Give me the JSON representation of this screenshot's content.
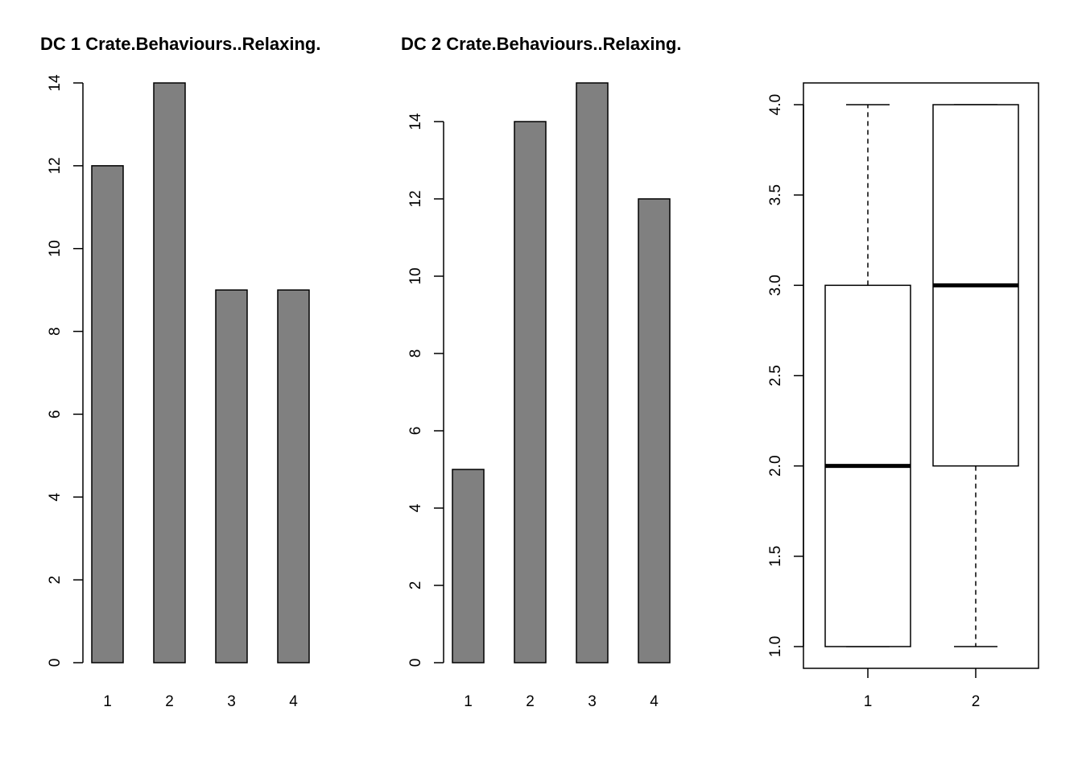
{
  "chart_data": [
    {
      "type": "bar",
      "title": "DC 1 Crate.Behaviours..Relaxing.",
      "categories": [
        "1",
        "2",
        "3",
        "4"
      ],
      "values": [
        12,
        14,
        9,
        9
      ],
      "ylim": [
        0,
        14
      ],
      "yticks": [
        0,
        2,
        4,
        6,
        8,
        10,
        12,
        14
      ],
      "bar_color": "#808080"
    },
    {
      "type": "bar",
      "title": "DC 2 Crate.Behaviours..Relaxing.",
      "categories": [
        "1",
        "2",
        "3",
        "4"
      ],
      "values": [
        5,
        14,
        15,
        12
      ],
      "ylim": [
        0,
        15
      ],
      "yticks": [
        0,
        2,
        4,
        6,
        8,
        10,
        12,
        14
      ],
      "bar_color": "#808080"
    },
    {
      "type": "boxplot",
      "title": "",
      "categories": [
        "1",
        "2"
      ],
      "boxes": [
        {
          "min": 1.0,
          "q1": 1.0,
          "median": 2.0,
          "q3": 3.0,
          "max": 4.0
        },
        {
          "min": 1.0,
          "q1": 2.0,
          "median": 3.0,
          "q3": 4.0,
          "max": 4.0
        }
      ],
      "ylim": [
        1.0,
        4.0
      ],
      "yticks": [
        "1.0",
        "1.5",
        "2.0",
        "2.5",
        "3.0",
        "3.5",
        "4.0"
      ],
      "frame": true
    }
  ]
}
